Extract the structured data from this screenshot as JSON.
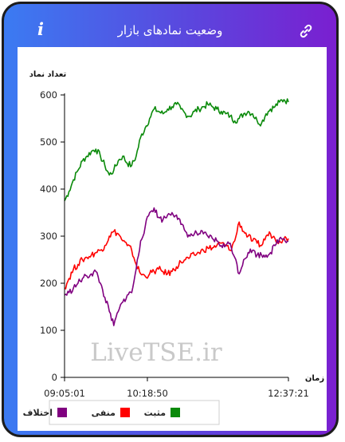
{
  "header": {
    "title": "وضعیت نمادهای بازار",
    "info_icon": "info-icon",
    "info_glyph": "i",
    "link_icon": "link-icon"
  },
  "watermark": "LiveTSE.ir",
  "chart_data": {
    "type": "line",
    "ylabel": "تعداد نماد",
    "xlabel": "زمان",
    "ylim": [
      0,
      600
    ],
    "yticks": [
      0,
      100,
      200,
      300,
      400,
      500,
      600
    ],
    "xticks": [
      "09:05:01",
      "10:18:50",
      "12:37:21"
    ],
    "x_labeled": [
      "09:05:01",
      "10:18:50",
      "12:37:21"
    ],
    "x_positions": [
      0,
      0.37,
      1.0
    ],
    "grid": false,
    "legend_placement": "bottom",
    "x": [
      0,
      0.02,
      0.04,
      0.06,
      0.08,
      0.1,
      0.12,
      0.14,
      0.16,
      0.18,
      0.2,
      0.22,
      0.24,
      0.26,
      0.28,
      0.3,
      0.32,
      0.34,
      0.36,
      0.38,
      0.4,
      0.42,
      0.44,
      0.46,
      0.48,
      0.5,
      0.52,
      0.54,
      0.56,
      0.58,
      0.6,
      0.62,
      0.64,
      0.66,
      0.68,
      0.7,
      0.72,
      0.74,
      0.76,
      0.78,
      0.8,
      0.82,
      0.84,
      0.86,
      0.88,
      0.9,
      0.92,
      0.94,
      0.96,
      0.98,
      1.0
    ],
    "series": [
      {
        "name": "مثبت",
        "color": "#0a8a0a",
        "values": [
          375,
          395,
          420,
          440,
          460,
          470,
          480,
          485,
          470,
          450,
          430,
          440,
          460,
          470,
          455,
          450,
          470,
          510,
          530,
          550,
          570,
          565,
          560,
          570,
          575,
          580,
          570,
          560,
          555,
          565,
          570,
          575,
          580,
          575,
          570,
          565,
          560,
          555,
          545,
          550,
          560,
          565,
          560,
          545,
          540,
          560,
          570,
          575,
          585,
          590,
          585
        ]
      },
      {
        "name": "منفی",
        "color": "#ff0000",
        "values": [
          190,
          210,
          230,
          240,
          250,
          255,
          260,
          265,
          270,
          280,
          300,
          310,
          305,
          290,
          280,
          270,
          240,
          220,
          215,
          220,
          225,
          230,
          225,
          220,
          225,
          235,
          245,
          250,
          255,
          260,
          265,
          270,
          275,
          275,
          280,
          285,
          280,
          270,
          290,
          330,
          310,
          300,
          290,
          285,
          280,
          300,
          305,
          295,
          290,
          295,
          295
        ]
      },
      {
        "name": "اختلاف",
        "color": "#800080",
        "values": [
          175,
          180,
          190,
          200,
          210,
          215,
          220,
          225,
          200,
          170,
          140,
          110,
          140,
          160,
          175,
          180,
          230,
          290,
          320,
          350,
          360,
          340,
          335,
          345,
          350,
          345,
          325,
          310,
          300,
          305,
          305,
          305,
          300,
          295,
          290,
          280,
          280,
          285,
          255,
          220,
          250,
          265,
          270,
          260,
          260,
          260,
          265,
          280,
          295,
          295,
          290
        ]
      }
    ]
  }
}
